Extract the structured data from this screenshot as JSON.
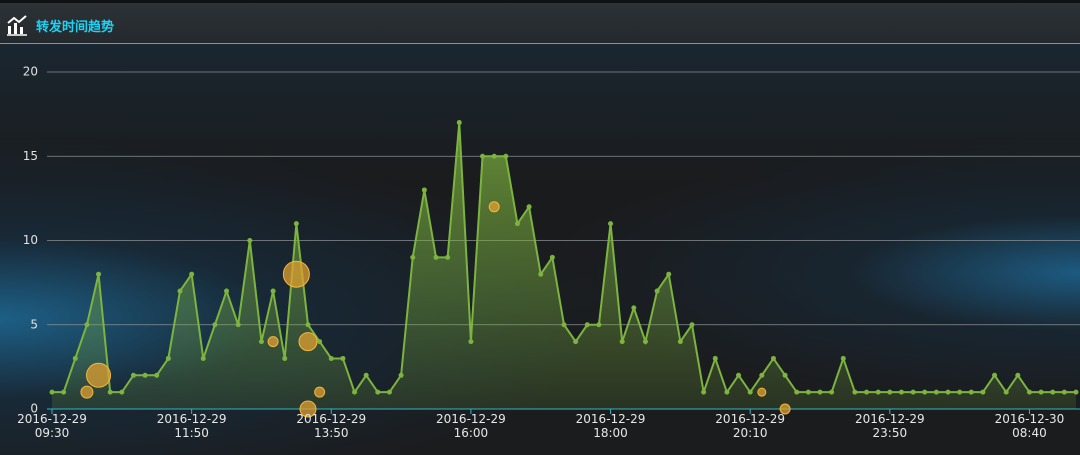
{
  "header": {
    "title": "转发时间趋势"
  },
  "chart_data": {
    "type": "area",
    "categories": [
      "2016-12-29\n09:30",
      null,
      null,
      null,
      null,
      null,
      null,
      null,
      null,
      null,
      null,
      null,
      "2016-12-29\n11:50",
      null,
      null,
      null,
      null,
      null,
      null,
      null,
      null,
      null,
      null,
      null,
      "2016-12-29\n13:50",
      null,
      null,
      null,
      null,
      null,
      null,
      null,
      null,
      null,
      null,
      null,
      "2016-12-29\n16:00",
      null,
      null,
      null,
      null,
      null,
      null,
      null,
      null,
      null,
      null,
      null,
      "2016-12-29\n18:00",
      null,
      null,
      null,
      null,
      null,
      null,
      null,
      null,
      null,
      null,
      null,
      "2016-12-29\n20:10",
      null,
      null,
      null,
      null,
      null,
      null,
      null,
      null,
      null,
      null,
      null,
      "2016-12-29\n23:50",
      null,
      null,
      null,
      null,
      null,
      null,
      null,
      null,
      null,
      null,
      null,
      "2016-12-30\n08:40",
      null,
      null,
      null,
      null
    ],
    "values": [
      1,
      1,
      3,
      5,
      8,
      1,
      1,
      2,
      2,
      2,
      3,
      7,
      8,
      3,
      5,
      7,
      5,
      10,
      4,
      7,
      3,
      11,
      5,
      4,
      3,
      3,
      1,
      2,
      1,
      1,
      2,
      9,
      13,
      9,
      9,
      17,
      4,
      15,
      15,
      15,
      11,
      12,
      8,
      9,
      5,
      4,
      5,
      5,
      11,
      4,
      6,
      4,
      7,
      8,
      4,
      5,
      1,
      3,
      1,
      2,
      1,
      2,
      3,
      2,
      1,
      1,
      1,
      1,
      3,
      1,
      1,
      1,
      1,
      1,
      1,
      1,
      1,
      1,
      1,
      1,
      1,
      2,
      1,
      2,
      1,
      1,
      1,
      1,
      1
    ],
    "color": "#7db33f",
    "bubbles": {
      "color": "#e0a030",
      "x": [
        3,
        4,
        19,
        21,
        22,
        22,
        23,
        38,
        61,
        63
      ],
      "y": [
        1,
        2,
        4,
        8,
        4,
        0,
        1,
        12,
        1,
        0
      ],
      "size": [
        6,
        12,
        5,
        13,
        9,
        8,
        5,
        5,
        4,
        5
      ]
    },
    "ylim": [
      0,
      20
    ],
    "yticks": [
      0,
      5,
      10,
      15,
      20
    ],
    "grid": true
  }
}
